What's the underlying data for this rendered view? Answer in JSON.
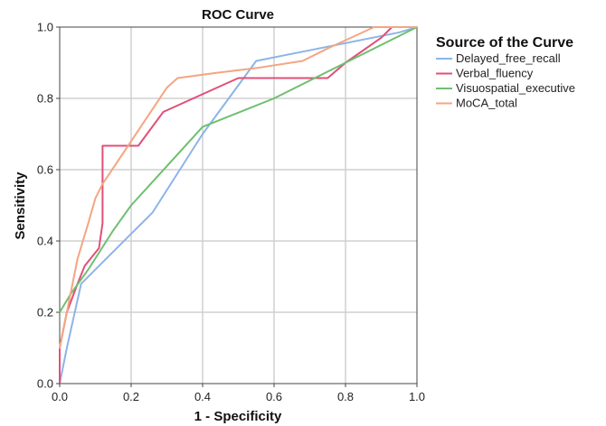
{
  "chart_data": {
    "type": "line",
    "title": "ROC Curve",
    "xlabel": "1 - Specificity",
    "ylabel": "Sensitivity",
    "xlim": [
      0.0,
      1.0
    ],
    "ylim": [
      0.0,
      1.0
    ],
    "x_ticks": [
      "0.0",
      "0.2",
      "0.4",
      "0.6",
      "0.8",
      "1.0"
    ],
    "y_ticks": [
      "0.0",
      "0.2",
      "0.4",
      "0.6",
      "0.8",
      "1.0"
    ],
    "grid": true,
    "legend_title": "Source of the Curve",
    "legend_position": "right",
    "series": [
      {
        "name": "Delayed_free_recall",
        "color": "#8db4e8",
        "x": [
          0.0,
          0.02,
          0.06,
          0.12,
          0.2,
          0.26,
          0.4,
          0.55,
          0.7,
          0.85,
          0.95,
          1.0
        ],
        "y": [
          0.0,
          0.1,
          0.28,
          0.34,
          0.42,
          0.48,
          0.7,
          0.905,
          0.935,
          0.965,
          0.985,
          1.0
        ]
      },
      {
        "name": "Verbal_fluency",
        "color": "#e05078",
        "x": [
          0.0,
          0.0,
          0.02,
          0.05,
          0.07,
          0.11,
          0.12,
          0.12,
          0.22,
          0.29,
          0.5,
          0.75,
          0.8,
          0.9,
          0.93,
          1.0
        ],
        "y": [
          0.0,
          0.1,
          0.2,
          0.28,
          0.33,
          0.38,
          0.45,
          0.667,
          0.667,
          0.762,
          0.857,
          0.857,
          0.9,
          0.97,
          1.0,
          1.0
        ]
      },
      {
        "name": "Visuospatial_executive",
        "color": "#6fbf6f",
        "x": [
          0.0,
          0.03,
          0.08,
          0.15,
          0.2,
          0.3,
          0.4,
          0.5,
          0.6,
          0.7,
          0.8,
          0.9,
          1.0
        ],
        "y": [
          0.2,
          0.25,
          0.32,
          0.43,
          0.5,
          0.61,
          0.72,
          0.76,
          0.8,
          0.85,
          0.9,
          0.95,
          1.0
        ]
      },
      {
        "name": "MoCA_total",
        "color": "#f4a582",
        "x": [
          0.0,
          0.02,
          0.05,
          0.08,
          0.1,
          0.12,
          0.2,
          0.3,
          0.33,
          0.45,
          0.55,
          0.68,
          0.75,
          0.88,
          1.0
        ],
        "y": [
          0.1,
          0.2,
          0.35,
          0.45,
          0.52,
          0.56,
          0.68,
          0.83,
          0.857,
          0.873,
          0.885,
          0.905,
          0.94,
          1.0,
          1.0
        ]
      }
    ]
  }
}
